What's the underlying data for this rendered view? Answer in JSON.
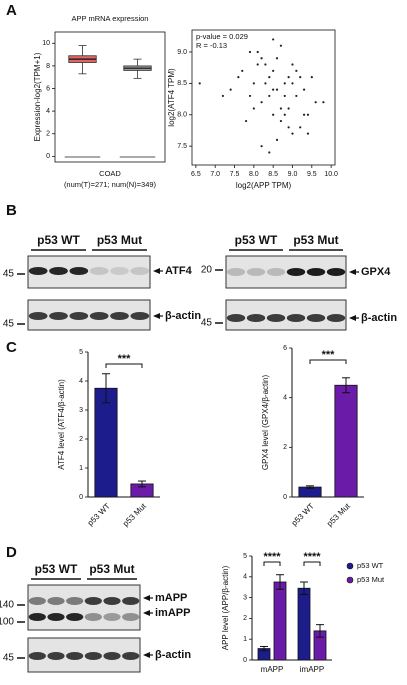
{
  "panel_labels": [
    "A",
    "B",
    "C",
    "D"
  ],
  "chart_data": [
    {
      "type": "box",
      "title": "APP mRNA expression",
      "ylabel": "Expression-log2(TPM+1)",
      "xlabel": "COAD",
      "xlabel_note": "(num(T)=271; num(N)=349)",
      "ylim": [
        -0.5,
        11
      ],
      "yticks": [
        0,
        2,
        4,
        6,
        8,
        10
      ],
      "boxes": [
        {
          "color": "#e06666",
          "min": 7.3,
          "q1": 8.3,
          "median": 8.6,
          "q3": 8.9,
          "max": 9.8
        },
        {
          "color": "#999999",
          "min": 6.9,
          "q1": 7.6,
          "median": 7.8,
          "q3": 8.0,
          "max": 8.6
        }
      ]
    },
    {
      "type": "scatter",
      "xlabel": "log2(APP TPM)",
      "ylabel": "log2(ATF4 TPM)",
      "annotations": [
        "p-value = 0.029",
        "R = -0.13"
      ],
      "xlim": [
        6.4,
        10.1
      ],
      "ylim": [
        7.2,
        9.35
      ],
      "xticks": [
        6.5,
        {
          "value": 7,
          "label": "7.0"
        },
        7.5,
        {
          "value": 8,
          "label": "8.0"
        },
        8.5,
        {
          "value": 9,
          "label": "9.0"
        },
        9.5,
        {
          "value": 10,
          "label": "10.0"
        }
      ],
      "yticks": [
        7.5,
        {
          "value": 8,
          "label": "8.0"
        },
        8.5,
        {
          "value": 9,
          "label": "9.0"
        }
      ],
      "color": "#222222",
      "x": [
        7.6,
        8.2,
        8.5,
        8.9,
        9.1,
        8.3,
        7.9,
        8.7,
        9.4,
        8.0,
        8.6,
        9.0,
        7.4,
        8.4,
        9.2,
        8.8,
        8.1,
        9.6,
        8.5,
        7.8,
        8.9,
        9.3,
        8.2,
        8.6,
        9.0,
        7.7,
        8.4,
        8.8,
        9.5,
        8.3,
        7.2,
        8.7,
        9.1,
        8.0,
        8.5,
        9.3,
        8.6,
        7.9,
        8.9,
        9.8,
        8.2,
        8.4,
        9.0,
        8.7,
        6.6,
        8.1,
        9.2,
        8.5,
        8.8,
        9.4
      ],
      "y": [
        8.6,
        8.9,
        8.4,
        8.1,
        8.7,
        8.5,
        8.3,
        9.1,
        8.0,
        8.5,
        7.6,
        8.8,
        8.4,
        8.6,
        7.8,
        8.3,
        9.0,
        8.2,
        8.0,
        7.9,
        8.6,
        8.4,
        8.2,
        8.9,
        7.7,
        8.7,
        7.4,
        8.5,
        8.6,
        8.8,
        8.3,
        7.9,
        8.3,
        8.1,
        8.7,
        8.0,
        8.4,
        9.0,
        7.8,
        8.2,
        7.5,
        8.3,
        8.5,
        8.1,
        8.5,
        8.8,
        8.6,
        9.2,
        8.0,
        7.7
      ]
    },
    {
      "type": "bar",
      "ylabel": "ATF4 level (ATF4/β-actin)",
      "categories": [
        "p53 WT",
        "p53 Mut"
      ],
      "values": [
        3.75,
        0.45
      ],
      "errors": [
        0.5,
        0.1
      ],
      "colors": [
        "#1c1c8c",
        "#6a1ba8"
      ],
      "ylim": [
        0,
        5
      ],
      "yticks": [
        0,
        1,
        2,
        3,
        4,
        5
      ],
      "significance": "***"
    },
    {
      "type": "bar",
      "ylabel": "GPX4 level (GPX4/β-actin)",
      "categories": [
        "p53 WT",
        "p53 Mut"
      ],
      "values": [
        0.4,
        4.5
      ],
      "errors": [
        0.05,
        0.3
      ],
      "colors": [
        "#1c1c8c",
        "#6a1ba8"
      ],
      "ylim": [
        0,
        6
      ],
      "yticks": [
        0,
        2,
        4,
        6
      ],
      "significance": "***"
    },
    {
      "type": "grouped_bar",
      "ylabel": "APP level (APP/β-actin)",
      "categories": [
        "mAPP",
        "imAPP"
      ],
      "series": [
        {
          "name": "p53 WT",
          "color": "#1c1c8c",
          "values": [
            0.55,
            3.45
          ],
          "errors": [
            0.1,
            0.3
          ]
        },
        {
          "name": "p53 Mut",
          "color": "#6a1ba8",
          "values": [
            3.75,
            1.4
          ],
          "errors": [
            0.35,
            0.3
          ]
        }
      ],
      "ylim": [
        0,
        5
      ],
      "yticks": [
        0,
        1,
        2,
        3,
        4,
        5
      ],
      "significance": [
        "****",
        "****"
      ]
    }
  ],
  "blots": [
    {
      "headers": [
        "p53 WT",
        "p53 Mut"
      ],
      "rows": [
        {
          "markers": [
            45
          ],
          "labels": [
            "ATF4"
          ]
        },
        {
          "markers": [
            45
          ],
          "labels": [
            "β-actin"
          ]
        }
      ]
    },
    {
      "headers": [
        "p53 WT",
        "p53 Mut"
      ],
      "rows": [
        {
          "markers": [
            20
          ],
          "labels": [
            "GPX4"
          ]
        },
        {
          "markers": [
            45
          ],
          "labels": [
            "β-actin"
          ]
        }
      ]
    },
    {
      "headers": [
        "p53 WT",
        "p53 Mut"
      ],
      "rows": [
        {
          "markers": [
            140,
            100
          ],
          "labels": [
            "mAPP",
            "imAPP"
          ]
        },
        {
          "markers": [
            45
          ],
          "labels": [
            "β-actin"
          ]
        }
      ]
    }
  ]
}
